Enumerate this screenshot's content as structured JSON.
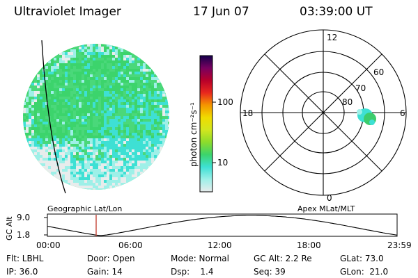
{
  "header": {
    "instrument": "Ultraviolet Imager",
    "date": "17 Jun 07",
    "time": "03:39:00 UT"
  },
  "colorbar": {
    "unit_label": "photon cm⁻²s⁻¹",
    "ticks": [
      "100",
      "10"
    ],
    "scale": "log",
    "colors": [
      "#e8ecec",
      "#9ef0e8",
      "#3ee0d4",
      "#3cd46c",
      "#8cdc2c",
      "#d2e61e",
      "#f0dc00",
      "#f49600",
      "#e8281e",
      "#b8002a",
      "#780060",
      "#14004a"
    ]
  },
  "globe_image": {
    "dominant_colors": [
      "#3cd46c",
      "#3ee0d4",
      "#9ef0e8",
      "#e8ecec"
    ]
  },
  "polar_plot": {
    "mlt_labels": {
      "top": "12",
      "left": "18",
      "right": "6",
      "bottom": "0"
    },
    "lat_labels": [
      "60",
      "70",
      "80"
    ],
    "highlight_color": "#3ee0d4"
  },
  "geo_label": "Geographic Lat/Lon",
  "apex_label": "Apex MLat/MLT",
  "altitude_panel": {
    "axis_label": "GC Alt",
    "yticks": [
      "9.0",
      "1.8"
    ],
    "xticks": [
      "00:00",
      "06:00",
      "12:00",
      "18:00",
      "23:59"
    ],
    "marker_color": "#c0392b"
  },
  "status": {
    "row1": {
      "flt": "Flt: LBHL",
      "door": "Door: Open",
      "mode": "Mode: Normal",
      "gcalt": "GC Alt: 2.2 Re",
      "glat": "GLat:  73.0"
    },
    "row2": {
      "ip": "IP: 36.0",
      "gain": "Gain: 14",
      "dsp": "Dsp:    1.4",
      "seq": "Seq: 39",
      "glon": "GLon:  21.0"
    }
  }
}
